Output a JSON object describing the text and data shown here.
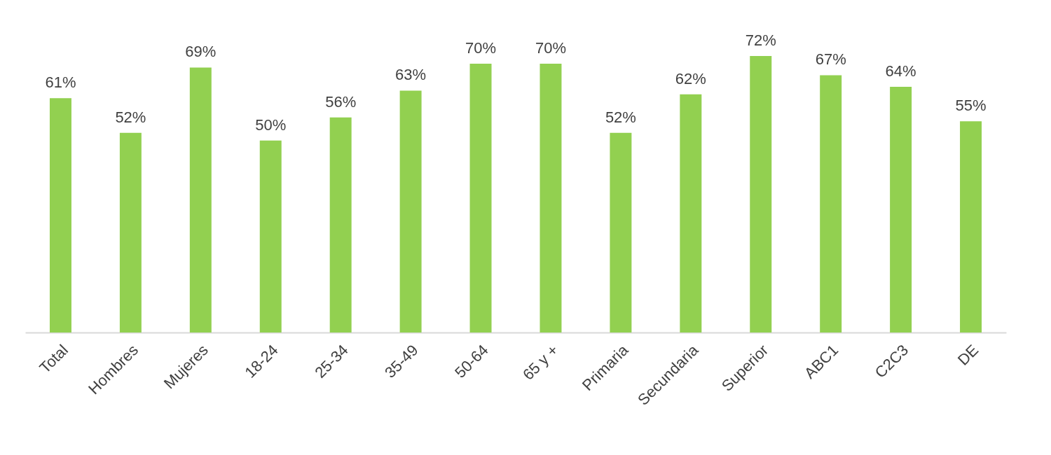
{
  "chart_data": {
    "type": "bar",
    "categories": [
      "Total",
      "Hombres",
      "Mujeres",
      "18-24",
      "25-34",
      "35-49",
      "50-64",
      "65 y +",
      "Primaria",
      "Secundaria",
      "Superior",
      "ABC1",
      "C2C3",
      "DE"
    ],
    "values": [
      61,
      52,
      69,
      50,
      56,
      63,
      70,
      70,
      52,
      62,
      72,
      67,
      64,
      55
    ],
    "value_labels": [
      "61%",
      "52%",
      "69%",
      "50%",
      "56%",
      "63%",
      "70%",
      "70%",
      "52%",
      "62%",
      "72%",
      "67%",
      "64%",
      "55%"
    ],
    "color": "#92d050",
    "tick_labels": "x"
  }
}
